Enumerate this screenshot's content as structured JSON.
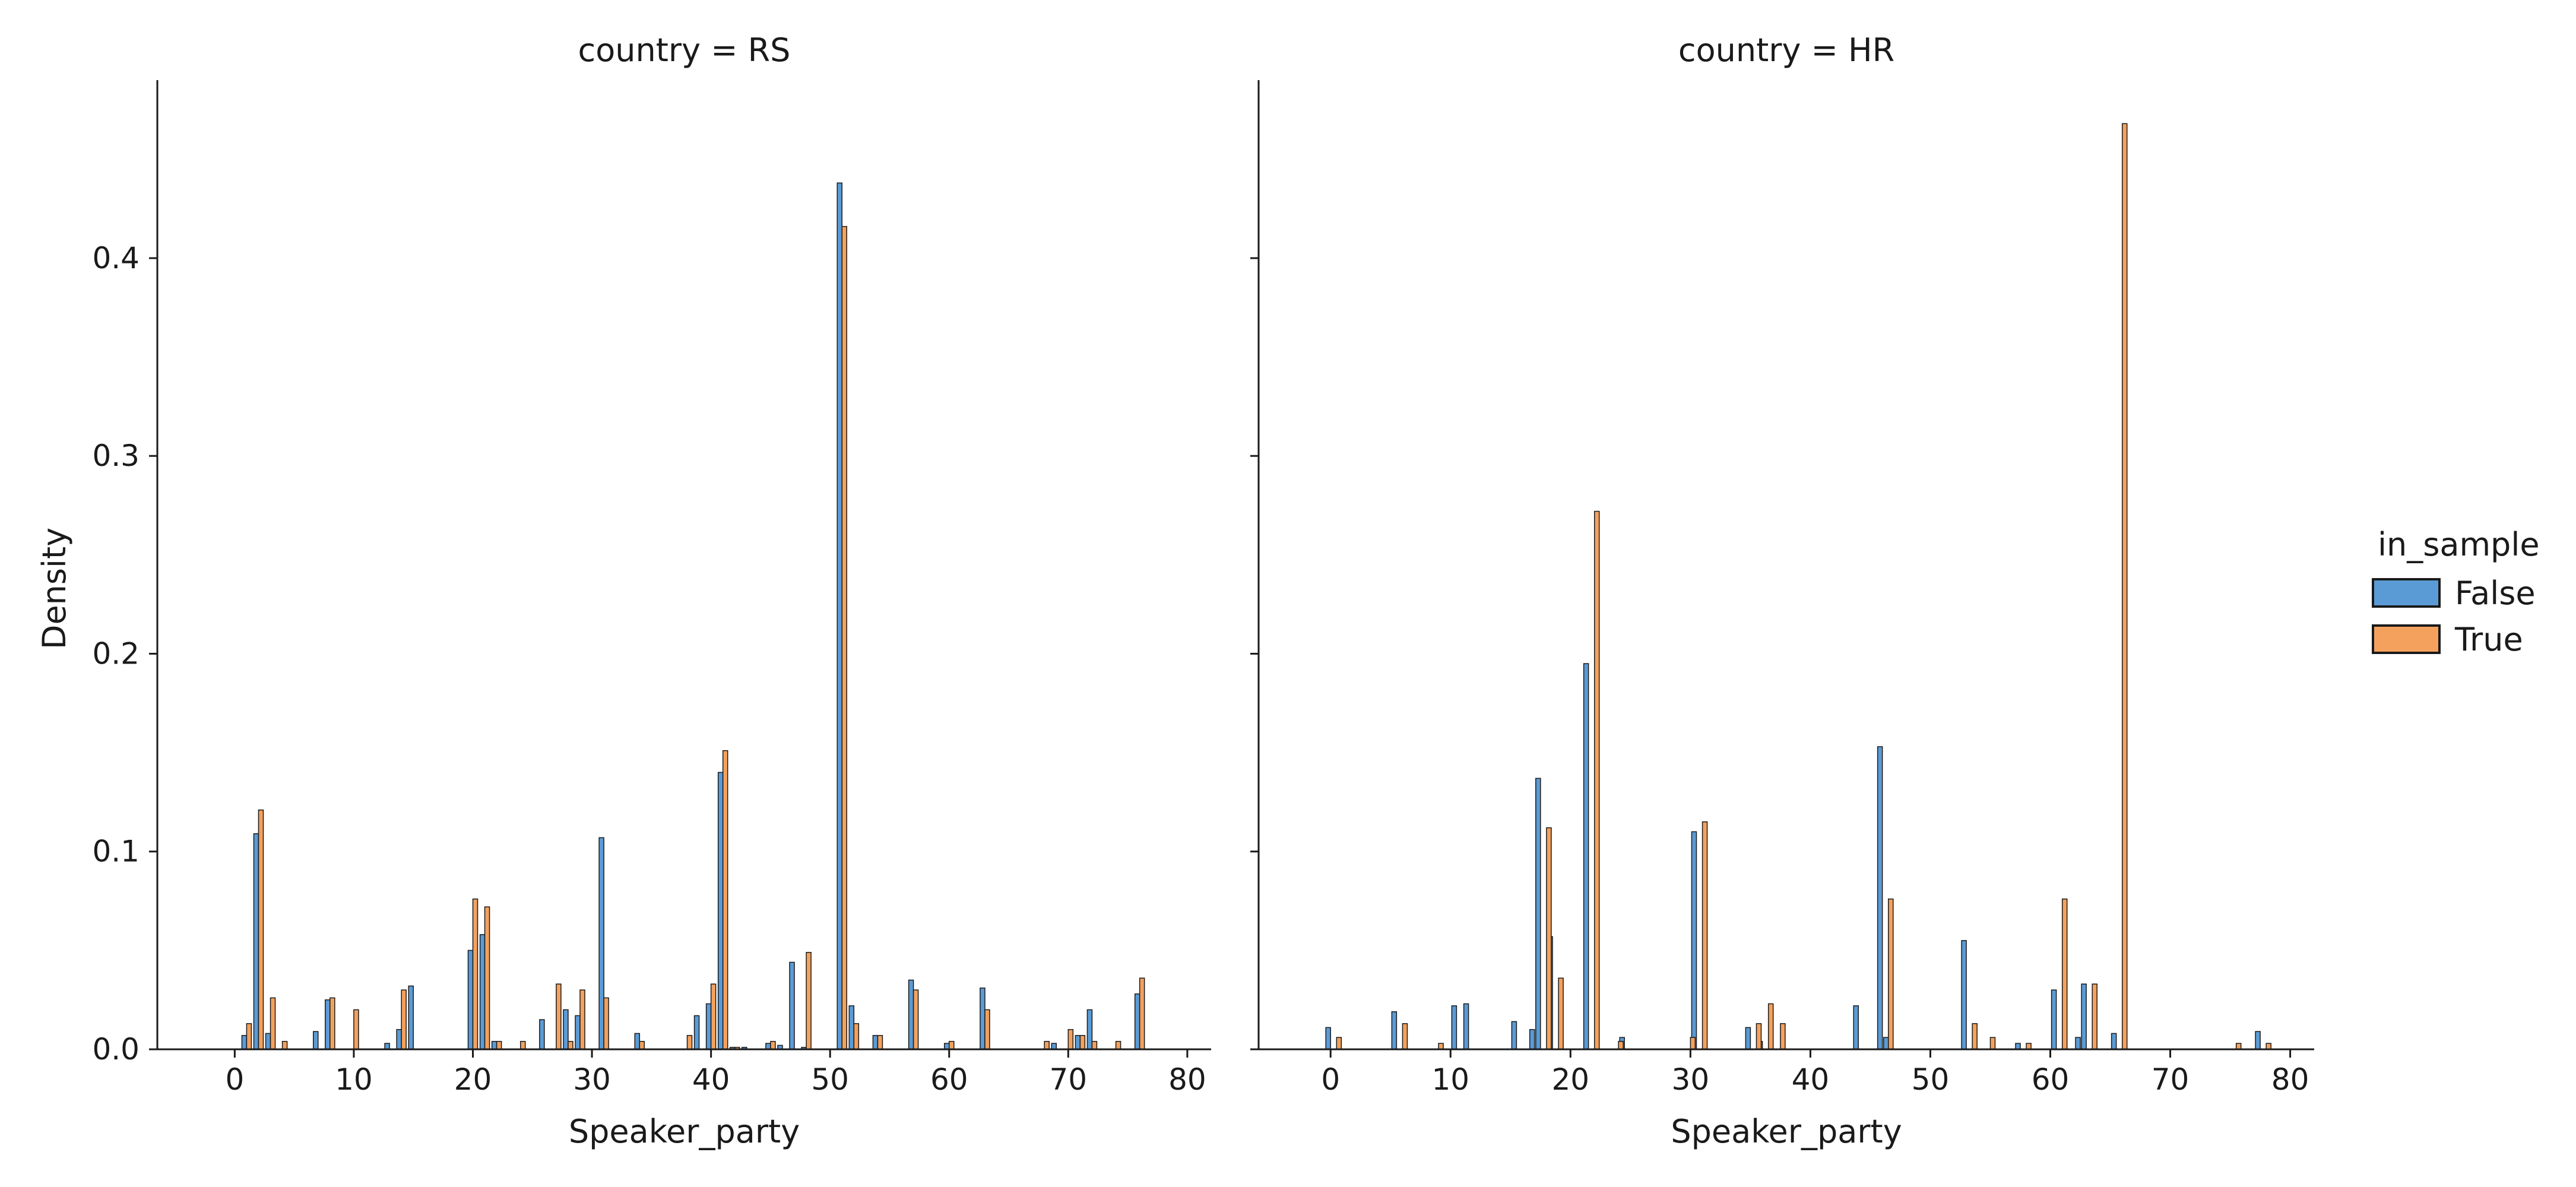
{
  "chart_data": [
    {
      "type": "bar",
      "title": "country = RS",
      "xlabel": "Speaker_party",
      "ylabel": "Density",
      "xlim": [
        -6.5,
        82
      ],
      "ylim": [
        0,
        0.49
      ],
      "xticks": [
        0,
        10,
        20,
        30,
        40,
        50,
        60,
        70,
        80
      ],
      "yticks": [
        0.0,
        0.1,
        0.2,
        0.3,
        0.4
      ],
      "series": [
        {
          "name": "False",
          "x": [
            1,
            2,
            3,
            7,
            8,
            13,
            14,
            15,
            20,
            21,
            22,
            26,
            28,
            29,
            31,
            34,
            39,
            40,
            41,
            42,
            43,
            45,
            46,
            47,
            48,
            51,
            52,
            54,
            57,
            60,
            63,
            69,
            71,
            72,
            76
          ],
          "values": [
            0.007,
            0.109,
            0.008,
            0.009,
            0.025,
            0.003,
            0.01,
            0.032,
            0.05,
            0.058,
            0.004,
            0.015,
            0.02,
            0.017,
            0.107,
            0.008,
            0.017,
            0.023,
            0.14,
            0.001,
            0.001,
            0.003,
            0.002,
            0.044,
            0.001,
            0.438,
            0.022,
            0.007,
            0.035,
            0.003,
            0.031,
            0.003,
            0.007,
            0.02,
            0.028
          ]
        },
        {
          "name": "True",
          "x": [
            1,
            2,
            3,
            4,
            8,
            10,
            14,
            20,
            21,
            22,
            24,
            27,
            28,
            29,
            31,
            34,
            38,
            40,
            41,
            42,
            45,
            48,
            51,
            52,
            54,
            57,
            60,
            63,
            68,
            70,
            71,
            72,
            74,
            76
          ],
          "values": [
            0.013,
            0.121,
            0.026,
            0.004,
            0.026,
            0.02,
            0.03,
            0.076,
            0.072,
            0.004,
            0.004,
            0.033,
            0.004,
            0.03,
            0.026,
            0.004,
            0.007,
            0.033,
            0.151,
            0.001,
            0.004,
            0.049,
            0.416,
            0.013,
            0.007,
            0.03,
            0.004,
            0.02,
            0.004,
            0.01,
            0.007,
            0.004,
            0.004,
            0.036
          ]
        }
      ]
    },
    {
      "type": "bar",
      "title": "country = HR",
      "xlabel": "Speaker_party",
      "ylabel": "",
      "xlim": [
        -6,
        82
      ],
      "ylim": [
        0,
        0.49
      ],
      "xticks": [
        0,
        10,
        20,
        30,
        40,
        50,
        60,
        70,
        80
      ],
      "yticks": [
        0.0,
        0.1,
        0.2,
        0.3,
        0.4
      ],
      "series": [
        {
          "name": "False",
          "x": [
            0,
            5.5,
            10.5,
            11.5,
            15.5,
            17,
            17.5,
            18.5,
            21.5,
            24.5,
            30.5,
            35,
            36,
            44,
            46,
            46.5,
            53,
            57.5,
            60.5,
            62.5,
            63,
            65.5,
            77.5
          ],
          "values": [
            0.011,
            0.019,
            0.022,
            0.023,
            0.014,
            0.01,
            0.137,
            0.057,
            0.195,
            0.006,
            0.11,
            0.011,
            0.004,
            0.022,
            0.153,
            0.006,
            0.055,
            0.003,
            0.03,
            0.006,
            0.033,
            0.008,
            0.009
          ]
        },
        {
          "name": "True",
          "x": [
            0.5,
            6,
            9,
            18,
            19,
            22,
            24,
            30,
            31,
            35.5,
            36.5,
            37.5,
            46.5,
            53.5,
            55,
            58,
            61,
            63.5,
            66,
            75.5,
            78
          ],
          "values": [
            0.006,
            0.013,
            0.003,
            0.112,
            0.036,
            0.272,
            0.004,
            0.006,
            0.115,
            0.013,
            0.023,
            0.013,
            0.076,
            0.013,
            0.006,
            0.003,
            0.076,
            0.033,
            0.468,
            0.003,
            0.003
          ]
        }
      ]
    }
  ],
  "legend": {
    "title": "in_sample",
    "items": [
      {
        "label": "False",
        "color": "#5b9bd5"
      },
      {
        "label": "True",
        "color": "#f4a15d"
      }
    ]
  },
  "colors": {
    "False": "#5b9bd5",
    "True": "#f4a15d",
    "edge": "#1a1a1a"
  }
}
